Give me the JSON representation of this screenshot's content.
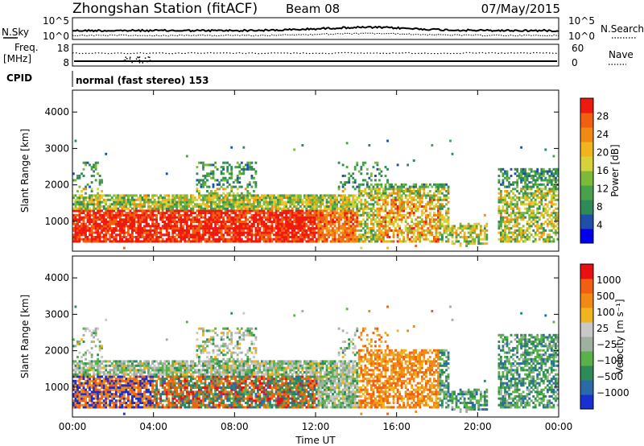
{
  "header": {
    "title": "Zhongshan Station (fitACF)",
    "beam": "Beam 08",
    "date": "07/May/2015"
  },
  "noise_panel": {
    "left_label": "N.Sky",
    "right_label": "N.Search",
    "left_ticks": [
      "10^5",
      "10^0"
    ],
    "right_ticks": [
      "10^5",
      "10^0"
    ]
  },
  "freq_panel": {
    "left_label_1": "Freq.",
    "left_label_2": "[MHz]",
    "right_label": "Nave",
    "left_ticks": [
      "18",
      "8"
    ],
    "right_ticks": [
      "60",
      "0"
    ]
  },
  "cpid": {
    "label": "CPID",
    "text": "normal (fast stereo) 153"
  },
  "colors": {
    "power_scale": [
      "#0000ee",
      "#1f4fa8",
      "#2e8a57",
      "#49a24a",
      "#7dba3a",
      "#d7d23a",
      "#f0b41e",
      "#f08a14",
      "#f06010",
      "#ee1a0e"
    ],
    "velocity_scale": [
      "#1a2fd0",
      "#2a6aa8",
      "#2e8a57",
      "#5ab04a",
      "#a0b0a0",
      "#c8c8c8",
      "#f0b41e",
      "#f08a14",
      "#f06010",
      "#e81010"
    ]
  },
  "chart_data": [
    {
      "type": "heatmap",
      "title": "",
      "xlabel": "",
      "ylabel": "Slant Range [km]",
      "x_ticks": [
        "00:00",
        "04:00",
        "08:00",
        "12:00",
        "16:00",
        "20:00",
        "00:00"
      ],
      "y_ticks": [
        1000,
        2000,
        3000,
        4000
      ],
      "ylim": [
        180,
        4600
      ],
      "xlim_hours": [
        0,
        24
      ],
      "colorbar_label": "Power [dB]",
      "colorbar_ticks": [
        4,
        8,
        12,
        16,
        20,
        24,
        28
      ],
      "colorbar_range": [
        0,
        30
      ]
    },
    {
      "type": "heatmap",
      "title": "",
      "xlabel": "Time UT",
      "ylabel": "Slant Range [km]",
      "x_ticks": [
        "00:00",
        "04:00",
        "08:00",
        "12:00",
        "16:00",
        "20:00",
        "00:00"
      ],
      "y_ticks": [
        1000,
        2000,
        3000,
        4000
      ],
      "ylim": [
        180,
        4600
      ],
      "xlim_hours": [
        0,
        24
      ],
      "colorbar_label": "Velocity [m s⁻¹]",
      "colorbar_ticks": [
        "1000",
        "500",
        "100",
        "25",
        "−25",
        "−100",
        "−500",
        "−1000"
      ]
    }
  ]
}
